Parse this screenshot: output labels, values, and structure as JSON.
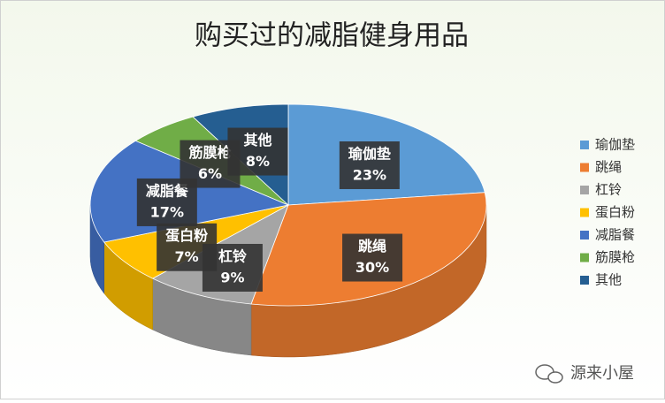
{
  "chart_data": {
    "type": "pie3d",
    "title": "购买过的减脂健身用品",
    "categories": [
      "瑜伽垫",
      "跳绳",
      "杠铃",
      "蛋白粉",
      "减脂餐",
      "筋膜枪",
      "其他"
    ],
    "values": [
      23,
      30,
      9,
      7,
      17,
      6,
      8
    ],
    "value_labels": [
      "23%",
      "30%",
      "9%",
      "7%",
      "17%",
      "6%",
      "8%"
    ],
    "colors": [
      "#5b9bd5",
      "#ed7d31",
      "#a5a5a5",
      "#ffc000",
      "#4472c4",
      "#70ad47",
      "#255e91"
    ],
    "legend": "right"
  },
  "watermark": "源来小屋"
}
